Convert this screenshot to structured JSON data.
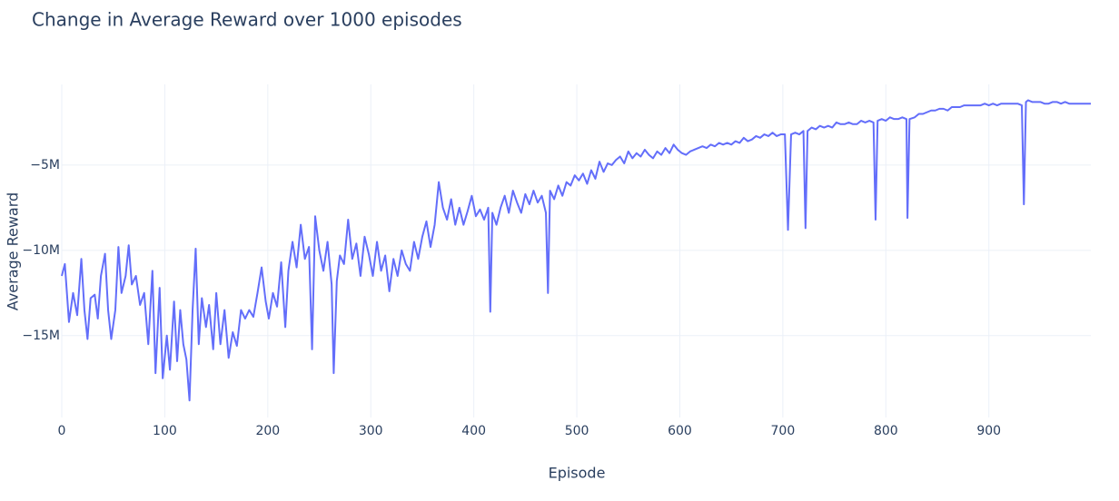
{
  "chart_data": {
    "type": "line",
    "title": "Change in Average Reward over 1000 episodes",
    "x_label": "Episode",
    "y_label": "Average Reward",
    "color": "#636efa",
    "grid": true,
    "xlim": [
      0,
      999
    ],
    "xticks": [
      0,
      100,
      200,
      300,
      400,
      500,
      600,
      700,
      800,
      900
    ],
    "ylim": [
      -19800000.0,
      -270000.0
    ],
    "yticks": [
      {
        "value": -15000000.0,
        "label": "−15M"
      },
      {
        "value": -10000000.0,
        "label": "−10M"
      },
      {
        "value": -5000000.0,
        "label": "−5M"
      }
    ],
    "x": [
      0,
      3,
      7,
      11,
      15,
      19,
      22,
      25,
      28,
      32,
      35,
      38,
      42,
      45,
      48,
      52,
      55,
      58,
      62,
      65,
      68,
      72,
      76,
      80,
      84,
      88,
      91,
      95,
      98,
      102,
      105,
      109,
      112,
      115,
      118,
      121,
      124,
      127,
      130,
      133,
      136,
      140,
      143,
      147,
      150,
      154,
      158,
      162,
      166,
      170,
      174,
      178,
      182,
      186,
      190,
      194,
      198,
      201,
      205,
      209,
      213,
      217,
      220,
      224,
      228,
      232,
      236,
      240,
      243,
      246,
      250,
      254,
      258,
      262,
      264,
      267,
      270,
      274,
      278,
      282,
      286,
      290,
      294,
      298,
      302,
      306,
      310,
      314,
      318,
      322,
      326,
      330,
      334,
      338,
      342,
      346,
      350,
      354,
      358,
      362,
      366,
      370,
      374,
      378,
      382,
      386,
      390,
      394,
      398,
      402,
      406,
      410,
      414,
      416,
      418,
      422,
      426,
      430,
      434,
      438,
      442,
      446,
      450,
      454,
      458,
      462,
      466,
      470,
      472,
      474,
      478,
      482,
      486,
      490,
      494,
      498,
      502,
      506,
      510,
      514,
      518,
      522,
      526,
      530,
      534,
      538,
      542,
      546,
      550,
      554,
      558,
      562,
      566,
      570,
      574,
      578,
      582,
      586,
      590,
      594,
      598,
      602,
      606,
      610,
      614,
      618,
      622,
      626,
      630,
      634,
      638,
      642,
      646,
      650,
      654,
      658,
      662,
      666,
      670,
      674,
      678,
      682,
      686,
      690,
      694,
      698,
      702,
      705,
      708,
      712,
      716,
      720,
      722,
      724,
      728,
      732,
      736,
      740,
      744,
      748,
      752,
      756,
      760,
      764,
      768,
      772,
      776,
      780,
      784,
      788,
      790,
      792,
      796,
      800,
      804,
      808,
      812,
      816,
      820,
      821,
      823,
      828,
      832,
      836,
      840,
      844,
      848,
      852,
      856,
      860,
      864,
      868,
      872,
      876,
      880,
      884,
      888,
      892,
      896,
      900,
      904,
      908,
      912,
      916,
      920,
      924,
      928,
      932,
      934,
      936,
      938,
      942,
      946,
      950,
      954,
      958,
      962,
      966,
      970,
      974,
      978,
      982,
      986,
      990,
      994,
      999
    ],
    "values": [
      -11500000.0,
      -10800000.0,
      -14200000.0,
      -12500000.0,
      -13800000.0,
      -10500000.0,
      -13500000.0,
      -15200000.0,
      -12800000.0,
      -12600000.0,
      -14000000.0,
      -11500000.0,
      -10200000.0,
      -13500000.0,
      -15200000.0,
      -13500000.0,
      -9800000.0,
      -12500000.0,
      -11500000.0,
      -9700000.0,
      -12000000.0,
      -11500000.0,
      -13200000.0,
      -12500000.0,
      -15500000.0,
      -11200000.0,
      -17200000.0,
      -12200000.0,
      -17500000.0,
      -15000000.0,
      -17000000.0,
      -13000000.0,
      -16500000.0,
      -13500000.0,
      -15500000.0,
      -16400000.0,
      -18800000.0,
      -13500000.0,
      -9900000.0,
      -15500000.0,
      -12800000.0,
      -14500000.0,
      -13200000.0,
      -15800000.0,
      -12500000.0,
      -15500000.0,
      -13500000.0,
      -16300000.0,
      -14800000.0,
      -15600000.0,
      -13500000.0,
      -14000000.0,
      -13500000.0,
      -13900000.0,
      -12500000.0,
      -11000000.0,
      -13000000.0,
      -14000000.0,
      -12500000.0,
      -13300000.0,
      -10700000.0,
      -14500000.0,
      -11200000.0,
      -9500000.0,
      -11000000.0,
      -8500000.0,
      -10500000.0,
      -9800000.0,
      -15800000.0,
      -8000000.0,
      -10000000.0,
      -11200000.0,
      -9500000.0,
      -12000000.0,
      -17200000.0,
      -11800000.0,
      -10300000.0,
      -10800000.0,
      -8200000.0,
      -10500000.0,
      -9600000.0,
      -11500000.0,
      -9200000.0,
      -10200000.0,
      -11500000.0,
      -9500000.0,
      -11200000.0,
      -10300000.0,
      -12400000.0,
      -10500000.0,
      -11500000.0,
      -10000000.0,
      -10800000.0,
      -11200000.0,
      -9500000.0,
      -10500000.0,
      -9200000.0,
      -8300000.0,
      -9800000.0,
      -8500000.0,
      -6000000.0,
      -7500000.0,
      -8200000.0,
      -7000000.0,
      -8500000.0,
      -7500000.0,
      -8500000.0,
      -7700000.0,
      -6800000.0,
      -8000000.0,
      -7600000.0,
      -8200000.0,
      -7500000.0,
      -13600000.0,
      -7800000.0,
      -8500000.0,
      -7500000.0,
      -6800000.0,
      -7800000.0,
      -6500000.0,
      -7200000.0,
      -7800000.0,
      -6700000.0,
      -7300000.0,
      -6500000.0,
      -7200000.0,
      -6800000.0,
      -7800000.0,
      -12500000.0,
      -6500000.0,
      -7000000.0,
      -6200000.0,
      -6800000.0,
      -6000000.0,
      -6200000.0,
      -5600000.0,
      -5900000.0,
      -5500000.0,
      -6100000.0,
      -5300000.0,
      -5800000.0,
      -4800000.0,
      -5400000.0,
      -4900000.0,
      -5000000.0,
      -4700000.0,
      -4500000.0,
      -4900000.0,
      -4200000.0,
      -4600000.0,
      -4300000.0,
      -4500000.0,
      -4100000.0,
      -4400000.0,
      -4600000.0,
      -4200000.0,
      -4400000.0,
      -4000000.0,
      -4300000.0,
      -3800000.0,
      -4100000.0,
      -4300000.0,
      -4400000.0,
      -4200000.0,
      -4100000.0,
      -4000000.0,
      -3900000.0,
      -4000000.0,
      -3800000.0,
      -3900000.0,
      -3700000.0,
      -3800000.0,
      -3700000.0,
      -3800000.0,
      -3600000.0,
      -3700000.0,
      -3400000.0,
      -3600000.0,
      -3500000.0,
      -3300000.0,
      -3400000.0,
      -3200000.0,
      -3300000.0,
      -3100000.0,
      -3300000.0,
      -3200000.0,
      -3200000.0,
      -8800000.0,
      -3200000.0,
      -3100000.0,
      -3200000.0,
      -3000000.0,
      -8700000.0,
      -3000000.0,
      -2800000.0,
      -2900000.0,
      -2700000.0,
      -2800000.0,
      -2700000.0,
      -2800000.0,
      -2500000.0,
      -2600000.0,
      -2600000.0,
      -2500000.0,
      -2600000.0,
      -2600000.0,
      -2400000.0,
      -2500000.0,
      -2400000.0,
      -2500000.0,
      -8200000.0,
      -2400000.0,
      -2300000.0,
      -2400000.0,
      -2200000.0,
      -2300000.0,
      -2300000.0,
      -2200000.0,
      -2300000.0,
      -8100000.0,
      -2300000.0,
      -2200000.0,
      -2000000.0,
      -2000000.0,
      -1900000.0,
      -1800000.0,
      -1800000.0,
      -1700000.0,
      -1700000.0,
      -1800000.0,
      -1600000.0,
      -1600000.0,
      -1600000.0,
      -1500000.0,
      -1500000.0,
      -1500000.0,
      -1500000.0,
      -1500000.0,
      -1400000.0,
      -1500000.0,
      -1400000.0,
      -1500000.0,
      -1400000.0,
      -1400000.0,
      -1400000.0,
      -1400000.0,
      -1400000.0,
      -1500000.0,
      -7300000.0,
      -1300000.0,
      -1200000.0,
      -1300000.0,
      -1300000.0,
      -1300000.0,
      -1400000.0,
      -1400000.0,
      -1300000.0,
      -1300000.0,
      -1400000.0,
      -1300000.0,
      -1400000.0,
      -1400000.0,
      -1400000.0,
      -1400000.0,
      -1400000.0,
      -1400000.0
    ]
  }
}
